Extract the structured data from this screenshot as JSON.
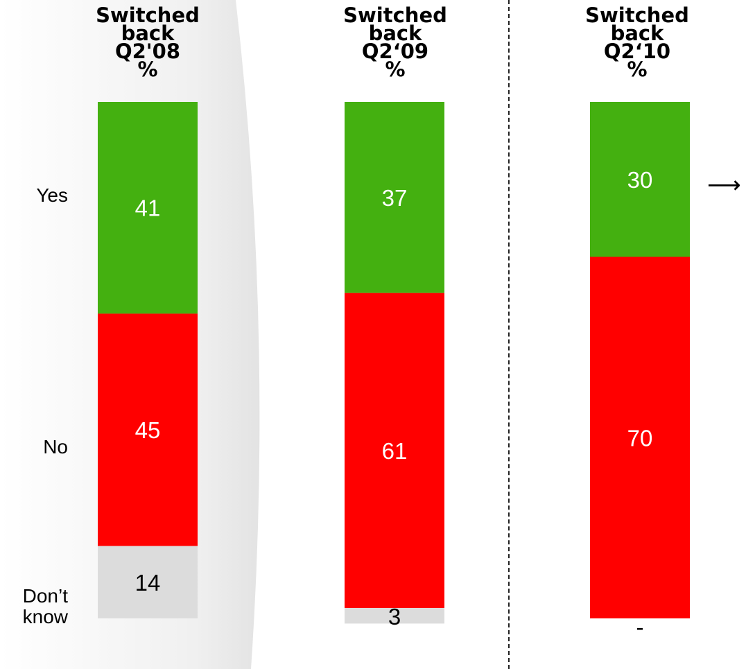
{
  "headers": [
    [
      "Switched",
      "back",
      "Q2'08",
      "%"
    ],
    [
      "Switched",
      "back",
      "Q2‘09",
      "%"
    ],
    [
      "Switched",
      "back",
      "Q2‘10",
      "%"
    ]
  ],
  "row_labels": {
    "yes": "Yes",
    "no": "No",
    "dont_know_line1": "Don’t",
    "dont_know_line2": "know"
  },
  "arrow": "⟶",
  "colors": {
    "yes": "#44b010",
    "no": "#ff0000",
    "dont_know": "#dcdcdc",
    "background_shade": "#e6e6e6"
  },
  "chart_data": {
    "type": "bar",
    "stacked": true,
    "categories": [
      "Switched back Q2'08",
      "Switched back Q2‘09",
      "Switched back Q2‘10"
    ],
    "series": [
      {
        "name": "Yes",
        "values": [
          41,
          37,
          30
        ],
        "labels": [
          "41",
          "37",
          "30"
        ]
      },
      {
        "name": "No",
        "values": [
          45,
          61,
          70
        ],
        "labels": [
          "45",
          "61",
          "70"
        ]
      },
      {
        "name": "Don’t know",
        "values": [
          14,
          3,
          0
        ],
        "labels": [
          "14",
          "3",
          "-"
        ]
      }
    ],
    "unit": "%",
    "ylim": [
      0,
      100
    ],
    "grid": false
  }
}
